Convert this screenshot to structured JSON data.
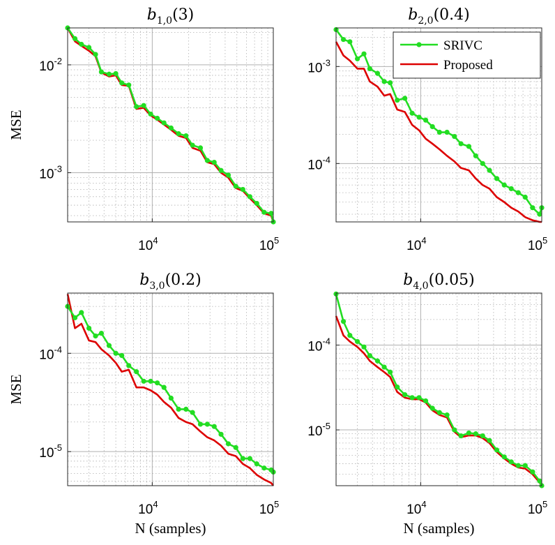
{
  "figure": {
    "xlabel": "N (samples)",
    "ylabel": "MSE",
    "legend": {
      "location": "top-right",
      "panel": 1,
      "entries": [
        {
          "label": "SRIVC",
          "color": "#22dd22",
          "marker": "circle"
        },
        {
          "label": "Proposed",
          "color": "#dd0000",
          "marker": "none"
        }
      ]
    },
    "colors": {
      "srivc": "#22dd22",
      "proposed": "#dd0000",
      "grid": "#b0b0b0"
    }
  },
  "chart_data": [
    {
      "type": "line",
      "title": {
        "base": "b",
        "sub": "1,0",
        "arg": "(3)"
      },
      "xscale": "log",
      "yscale": "log",
      "xlim": [
        2000,
        100000
      ],
      "ylim": [
        0.00035,
        0.022
      ],
      "xticks": [
        {
          "base": "10",
          "exp": "4",
          "value": 10000
        },
        {
          "base": "10",
          "exp": "5",
          "value": 100000
        }
      ],
      "yticks": [
        {
          "base": "10",
          "exp": "-3",
          "value": 0.001
        },
        {
          "base": "10",
          "exp": "-2",
          "value": 0.01
        }
      ],
      "xlabel": "",
      "ylabel": "MSE",
      "grid": true,
      "series": [
        {
          "name": "SRIVC",
          "x": [
            2000,
            2300,
            2600,
            3000,
            3400,
            3800,
            4400,
            5000,
            5600,
            6400,
            7400,
            8500,
            9700,
            11000,
            12500,
            14300,
            16500,
            19000,
            21500,
            25000,
            28500,
            32500,
            37000,
            42500,
            49000,
            56000,
            64000,
            73000,
            84000,
            96000,
            100000
          ],
          "y": [
            0.022,
            0.0175,
            0.0155,
            0.0145,
            0.0125,
            0.0086,
            0.0082,
            0.0083,
            0.0068,
            0.0065,
            0.0041,
            0.0042,
            0.0035,
            0.0032,
            0.0029,
            0.0026,
            0.0023,
            0.0022,
            0.0018,
            0.0017,
            0.0013,
            0.00125,
            0.00105,
            0.00095,
            0.00075,
            0.0007,
            0.0006,
            0.00052,
            0.00043,
            0.00042,
            0.00035
          ]
        },
        {
          "name": "Proposed",
          "x": [
            2000,
            2300,
            2600,
            3000,
            3400,
            3800,
            4400,
            5000,
            5600,
            6400,
            7400,
            8500,
            9700,
            11000,
            12500,
            14300,
            16500,
            19000,
            21500,
            25000,
            28500,
            32500,
            37000,
            42500,
            49000,
            56000,
            64000,
            73000,
            84000,
            96000,
            100000
          ],
          "y": [
            0.022,
            0.0165,
            0.015,
            0.0135,
            0.012,
            0.0085,
            0.0078,
            0.008,
            0.0065,
            0.0064,
            0.0039,
            0.004,
            0.0034,
            0.0031,
            0.0028,
            0.0025,
            0.0022,
            0.0021,
            0.0017,
            0.0016,
            0.00125,
            0.0012,
            0.001,
            0.0009,
            0.00072,
            0.00068,
            0.00058,
            0.0005,
            0.00042,
            0.0004,
            0.00035
          ]
        }
      ]
    },
    {
      "type": "line",
      "title": {
        "base": "b",
        "sub": "2,0",
        "arg": "(0.4)"
      },
      "xscale": "log",
      "yscale": "log",
      "xlim": [
        2000,
        100000
      ],
      "ylim": [
        2.5e-05,
        0.0025
      ],
      "xticks": [
        {
          "base": "10",
          "exp": "4",
          "value": 10000
        },
        {
          "base": "10",
          "exp": "5",
          "value": 100000
        }
      ],
      "yticks": [
        {
          "base": "10",
          "exp": "-4",
          "value": 0.0001
        },
        {
          "base": "10",
          "exp": "-3",
          "value": 0.001
        }
      ],
      "xlabel": "",
      "ylabel": "",
      "grid": true,
      "series": [
        {
          "name": "SRIVC",
          "x": [
            2000,
            2300,
            2600,
            3000,
            3400,
            3800,
            4400,
            5000,
            5600,
            6400,
            7400,
            8500,
            9700,
            11000,
            12500,
            14300,
            16500,
            19000,
            21500,
            25000,
            28500,
            32500,
            37000,
            42500,
            49000,
            56000,
            64000,
            73000,
            84000,
            96000,
            100000
          ],
          "y": [
            0.0024,
            0.0019,
            0.0018,
            0.0012,
            0.00135,
            0.00095,
            0.00085,
            0.0007,
            0.00068,
            0.00045,
            0.00047,
            0.00033,
            0.0003,
            0.00028,
            0.00024,
            0.00021,
            0.00021,
            0.00019,
            0.00016,
            0.00015,
            0.00012,
            0.0001,
            8.5e-05,
            7e-05,
            6e-05,
            5.5e-05,
            5e-05,
            4.5e-05,
            3.5e-05,
            3e-05,
            3.5e-05
          ]
        },
        {
          "name": "Proposed",
          "x": [
            2000,
            2300,
            2600,
            3000,
            3400,
            3800,
            4400,
            5000,
            5600,
            6400,
            7400,
            8500,
            9700,
            11000,
            12500,
            14300,
            16500,
            19000,
            21500,
            25000,
            28500,
            32500,
            37000,
            42500,
            49000,
            56000,
            64000,
            73000,
            84000,
            96000,
            100000
          ],
          "y": [
            0.0018,
            0.0013,
            0.00115,
            0.00095,
            0.00095,
            0.0007,
            0.00062,
            0.0005,
            0.00052,
            0.00036,
            0.00034,
            0.00025,
            0.00022,
            0.00018,
            0.00016,
            0.00014,
            0.00012,
            0.000105,
            9e-05,
            8.5e-05,
            7e-05,
            6e-05,
            5.5e-05,
            4.5e-05,
            4e-05,
            3.5e-05,
            3.2e-05,
            2.8e-05,
            2.6e-05,
            2.5e-05,
            2.5e-05
          ]
        }
      ]
    },
    {
      "type": "line",
      "title": {
        "base": "b",
        "sub": "3,0",
        "arg": "(0.2)"
      },
      "xscale": "log",
      "yscale": "log",
      "xlim": [
        2000,
        100000
      ],
      "ylim": [
        4.5e-06,
        0.00041
      ],
      "xticks": [
        {
          "base": "10",
          "exp": "4",
          "value": 10000
        },
        {
          "base": "10",
          "exp": "5",
          "value": 100000
        }
      ],
      "yticks": [
        {
          "base": "10",
          "exp": "-5",
          "value": 1e-05
        },
        {
          "base": "10",
          "exp": "-4",
          "value": 0.0001
        }
      ],
      "xlabel": "N (samples)",
      "ylabel": "MSE",
      "grid": true,
      "series": [
        {
          "name": "SRIVC",
          "x": [
            2000,
            2300,
            2600,
            3000,
            3400,
            3800,
            4400,
            5000,
            5600,
            6400,
            7400,
            8500,
            9700,
            11000,
            12500,
            14300,
            16500,
            19000,
            21500,
            25000,
            28500,
            32500,
            37000,
            42500,
            49000,
            56000,
            64000,
            73000,
            84000,
            96000,
            100000
          ],
          "y": [
            0.0003,
            0.00023,
            0.00026,
            0.00018,
            0.00015,
            0.00016,
            0.00012,
            0.0001,
            9.5e-05,
            7.5e-05,
            6.5e-05,
            5.2e-05,
            5.2e-05,
            5e-05,
            4.5e-05,
            3.5e-05,
            2.7e-05,
            2.7e-05,
            2.5e-05,
            1.9e-05,
            1.9e-05,
            1.8e-05,
            1.5e-05,
            1.2e-05,
            1.1e-05,
            8.5e-06,
            8.5e-06,
            7.5e-06,
            6.8e-06,
            6.5e-06,
            6.2e-06
          ]
        },
        {
          "name": "Proposed",
          "x": [
            2000,
            2300,
            2600,
            3000,
            3400,
            3800,
            4400,
            5000,
            5600,
            6400,
            7400,
            8500,
            9700,
            11000,
            12500,
            14300,
            16500,
            19000,
            21500,
            25000,
            28500,
            32500,
            37000,
            42500,
            49000,
            56000,
            64000,
            73000,
            84000,
            96000,
            100000
          ],
          "y": [
            0.0004,
            0.00018,
            0.0002,
            0.000135,
            0.00013,
            0.00011,
            9.5e-05,
            8e-05,
            6.5e-05,
            6.8e-05,
            4.5e-05,
            4.5e-05,
            4.2e-05,
            3.8e-05,
            3.2e-05,
            2.8e-05,
            2.2e-05,
            2e-05,
            1.9e-05,
            1.6e-05,
            1.4e-05,
            1.3e-05,
            1.15e-05,
            9.5e-06,
            9e-06,
            7.5e-06,
            6.8e-06,
            5.8e-06,
            5.2e-06,
            4.8e-06,
            4.5e-06
          ]
        }
      ]
    },
    {
      "type": "line",
      "title": {
        "base": "b",
        "sub": "4,0",
        "arg": "(0.05)"
      },
      "xscale": "log",
      "yscale": "log",
      "xlim": [
        2000,
        100000
      ],
      "ylim": [
        2.2e-06,
        0.00041
      ],
      "xticks": [
        {
          "base": "10",
          "exp": "4",
          "value": 10000
        },
        {
          "base": "10",
          "exp": "5",
          "value": 100000
        }
      ],
      "yticks": [
        {
          "base": "10",
          "exp": "-5",
          "value": 1e-05
        },
        {
          "base": "10",
          "exp": "-4",
          "value": 0.0001
        }
      ],
      "xlabel": "N (samples)",
      "ylabel": "",
      "grid": true,
      "series": [
        {
          "name": "SRIVC",
          "x": [
            2000,
            2300,
            2600,
            3000,
            3400,
            3800,
            4400,
            5000,
            5600,
            6400,
            7400,
            8500,
            9700,
            11000,
            12500,
            14300,
            16500,
            19000,
            21500,
            25000,
            28500,
            32500,
            37000,
            42500,
            49000,
            56000,
            64000,
            73000,
            84000,
            96000,
            100000
          ],
          "y": [
            0.0004,
            0.00019,
            0.00013,
            0.00011,
            9.5e-05,
            7.5e-05,
            6.5e-05,
            5.5e-05,
            4.8e-05,
            3.2e-05,
            2.6e-05,
            2.4e-05,
            2.4e-05,
            2.2e-05,
            1.8e-05,
            1.6e-05,
            1.5e-05,
            1e-05,
            8.5e-06,
            9.2e-06,
            9e-06,
            8.5e-06,
            7.5e-06,
            5.8e-06,
            4.8e-06,
            4.2e-06,
            3.8e-06,
            3.8e-06,
            3.2e-06,
            2.5e-06,
            2.2e-06
          ]
        },
        {
          "name": "Proposed",
          "x": [
            2000,
            2300,
            2600,
            3000,
            3400,
            3800,
            4400,
            5000,
            5600,
            6400,
            7400,
            8500,
            9700,
            11000,
            12500,
            14300,
            16500,
            19000,
            21500,
            25000,
            28500,
            32500,
            37000,
            42500,
            49000,
            56000,
            64000,
            73000,
            84000,
            96000,
            100000
          ],
          "y": [
            0.00022,
            0.00013,
            0.00011,
            9.5e-05,
            8e-05,
            6.5e-05,
            5.5e-05,
            4.8e-05,
            4.2e-05,
            2.8e-05,
            2.4e-05,
            2.3e-05,
            2.3e-05,
            2.1e-05,
            1.7e-05,
            1.5e-05,
            1.4e-05,
            9.5e-06,
            8.2e-06,
            8.6e-06,
            8.6e-06,
            8e-06,
            7e-06,
            5.5e-06,
            4.6e-06,
            4e-06,
            3.6e-06,
            3.5e-06,
            3e-06,
            2.4e-06,
            2.2e-06
          ]
        }
      ]
    }
  ]
}
